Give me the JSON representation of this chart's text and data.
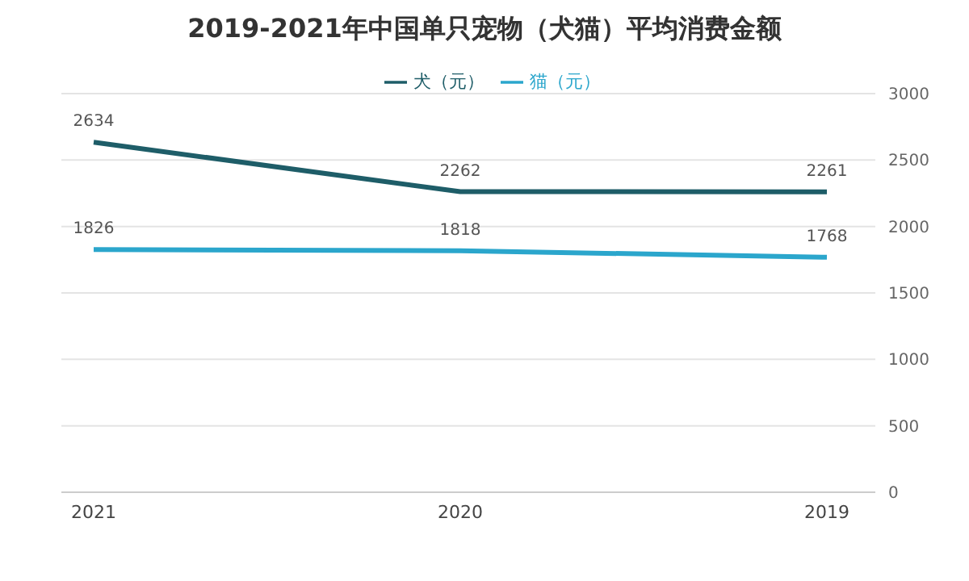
{
  "chart_data": {
    "type": "line",
    "title": "2019-2021年中国单只宠物（犬猫）平均消费金额",
    "categories": [
      "2021",
      "2020",
      "2019"
    ],
    "series": [
      {
        "name": "猫（元）",
        "color": "#2ba6cc",
        "values": [
          1826,
          1818,
          1768
        ]
      },
      {
        "name": "犬（元）",
        "color": "#1e5d68",
        "values": [
          2634,
          2262,
          2261
        ]
      }
    ],
    "ylim": [
      0,
      3000
    ],
    "yticks": [
      0,
      500,
      1000,
      1500,
      2000,
      2500,
      3000
    ],
    "grid": "y",
    "legend": "top",
    "marker": "none",
    "data_labels": true
  }
}
